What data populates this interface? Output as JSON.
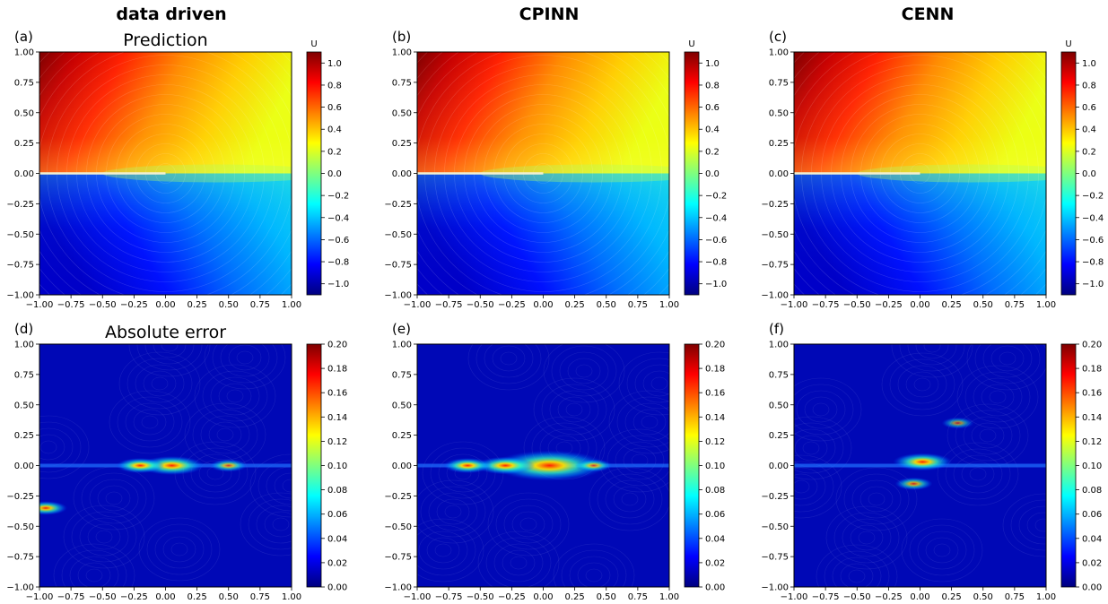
{
  "column_titles": [
    "data driven",
    "CPINN",
    "CENN"
  ],
  "row_titles": [
    "Prediction",
    "Absolute error"
  ],
  "panel_letters": [
    "(a)",
    "(b)",
    "(c)",
    "(d)",
    "(e)",
    "(f)"
  ],
  "colorbar_label_top": "U",
  "colors": {
    "colormap": "jet",
    "colormap_stops": [
      "#00007f",
      "#0000ff",
      "#007fff",
      "#00ffff",
      "#7fff7f",
      "#ffff00",
      "#ff7f00",
      "#ff0000",
      "#7f0000"
    ],
    "contour_line": "#ffffff"
  },
  "chart_data": [
    {
      "type": "heatmap",
      "panel": "(a)",
      "column": "data driven",
      "title": "Prediction",
      "field": "U",
      "xlim": [
        -1,
        1
      ],
      "ylim": [
        -1,
        1
      ],
      "x_ticks": [
        "−1.00",
        "−0.75",
        "−0.50",
        "−0.25",
        "0.00",
        "0.25",
        "0.50",
        "0.75",
        "1.00"
      ],
      "y_ticks": [
        "−1.00",
        "−0.75",
        "−0.50",
        "−0.25",
        "0.00",
        "0.25",
        "0.50",
        "0.75",
        "1.00"
      ],
      "colorbar": {
        "label": "U",
        "range": [
          -1.1,
          1.1
        ],
        "ticks": [
          "−1.0",
          "−0.8",
          "−0.6",
          "−0.4",
          "−0.2",
          "0.0",
          "0.2",
          "0.4",
          "0.6",
          "0.8",
          "1.0"
        ],
        "tick_values": [
          -1.0,
          -0.8,
          -0.6,
          -0.4,
          -0.2,
          0.0,
          0.2,
          0.4,
          0.6,
          0.8,
          1.0
        ]
      },
      "description_values": {
        "max": 1.05,
        "min": -1.05,
        "discontinuity": "y = 0 for x < 0"
      }
    },
    {
      "type": "heatmap",
      "panel": "(b)",
      "column": "CPINN",
      "title": "",
      "field": "U",
      "xlim": [
        -1,
        1
      ],
      "ylim": [
        -1,
        1
      ],
      "x_ticks": [
        "−1.00",
        "−0.75",
        "−0.50",
        "−0.25",
        "0.00",
        "0.25",
        "0.50",
        "0.75",
        "1.00"
      ],
      "y_ticks": [
        "−1.00",
        "−0.75",
        "−0.50",
        "−0.25",
        "0.00",
        "0.25",
        "0.50",
        "0.75",
        "1.00"
      ],
      "colorbar": {
        "label": "U",
        "range": [
          -1.1,
          1.1
        ],
        "ticks": [
          "−1.0",
          "−0.8",
          "−0.6",
          "−0.4",
          "−0.2",
          "0.0",
          "0.2",
          "0.4",
          "0.6",
          "0.8",
          "1.0"
        ],
        "tick_values": [
          -1.0,
          -0.8,
          -0.6,
          -0.4,
          -0.2,
          0.0,
          0.2,
          0.4,
          0.6,
          0.8,
          1.0
        ]
      }
    },
    {
      "type": "heatmap",
      "panel": "(c)",
      "column": "CENN",
      "title": "",
      "field": "U",
      "xlim": [
        -1,
        1
      ],
      "ylim": [
        -1,
        1
      ],
      "x_ticks": [
        "−1.00",
        "−0.75",
        "−0.50",
        "−0.25",
        "0.00",
        "0.25",
        "0.50",
        "0.75",
        "1.00"
      ],
      "y_ticks": [
        "−1.00",
        "−0.75",
        "−0.50",
        "−0.25",
        "0.00",
        "0.25",
        "0.50",
        "0.75",
        "1.00"
      ],
      "colorbar": {
        "label": "U",
        "range": [
          -1.1,
          1.1
        ],
        "ticks": [
          "−1.0",
          "−0.8",
          "−0.6",
          "−0.4",
          "−0.2",
          "0.0",
          "0.2",
          "0.4",
          "0.6",
          "0.8",
          "1.0"
        ],
        "tick_values": [
          -1.0,
          -0.8,
          -0.6,
          -0.4,
          -0.2,
          0.0,
          0.2,
          0.4,
          0.6,
          0.8,
          1.0
        ]
      }
    },
    {
      "type": "heatmap",
      "panel": "(d)",
      "column": "data driven",
      "title": "Absolute error",
      "field": "error",
      "xlim": [
        -1,
        1
      ],
      "ylim": [
        -1,
        1
      ],
      "x_ticks": [
        "−1.00",
        "−0.75",
        "−0.50",
        "−0.25",
        "0.00",
        "0.25",
        "0.50",
        "0.75",
        "1.00"
      ],
      "y_ticks": [
        "−1.00",
        "−0.75",
        "−0.50",
        "−0.25",
        "0.00",
        "0.25",
        "0.50",
        "0.75",
        "1.00"
      ],
      "colorbar": {
        "label": "",
        "range": [
          0,
          0.2
        ],
        "ticks": [
          "0.00",
          "0.02",
          "0.04",
          "0.06",
          "0.08",
          "0.10",
          "0.12",
          "0.14",
          "0.16",
          "0.18",
          "0.20"
        ],
        "tick_values": [
          0,
          0.02,
          0.04,
          0.06,
          0.08,
          0.1,
          0.12,
          0.14,
          0.16,
          0.18,
          0.2
        ]
      },
      "hotspots": [
        {
          "x": 0.05,
          "y": 0.0,
          "value": 0.08
        },
        {
          "x": -0.2,
          "y": 0.0,
          "value": 0.05
        },
        {
          "x": 0.5,
          "y": 0.0,
          "value": 0.03
        },
        {
          "x": -0.95,
          "y": -0.35,
          "value": 0.04
        }
      ]
    },
    {
      "type": "heatmap",
      "panel": "(e)",
      "column": "CPINN",
      "title": "",
      "field": "error",
      "xlim": [
        -1,
        1
      ],
      "ylim": [
        -1,
        1
      ],
      "x_ticks": [
        "−1.00",
        "−0.75",
        "−0.50",
        "−0.25",
        "0.00",
        "0.25",
        "0.50",
        "0.75",
        "1.00"
      ],
      "y_ticks": [
        "−1.00",
        "−0.75",
        "−0.50",
        "−0.25",
        "0.00",
        "0.25",
        "0.50",
        "0.75",
        "1.00"
      ],
      "colorbar": {
        "label": "",
        "range": [
          0,
          0.2
        ],
        "ticks": [
          "0.00",
          "0.02",
          "0.04",
          "0.06",
          "0.08",
          "0.10",
          "0.12",
          "0.14",
          "0.16",
          "0.18",
          "0.20"
        ],
        "tick_values": [
          0,
          0.02,
          0.04,
          0.06,
          0.08,
          0.1,
          0.12,
          0.14,
          0.16,
          0.18,
          0.2
        ]
      },
      "hotspots": [
        {
          "x": 0.05,
          "y": 0.0,
          "value": 0.17
        },
        {
          "x": -0.3,
          "y": 0.0,
          "value": 0.07
        },
        {
          "x": -0.6,
          "y": 0.0,
          "value": 0.05
        },
        {
          "x": 0.4,
          "y": 0.0,
          "value": 0.03
        }
      ]
    },
    {
      "type": "heatmap",
      "panel": "(f)",
      "column": "CENN",
      "title": "",
      "field": "error",
      "xlim": [
        -1,
        1
      ],
      "ylim": [
        -1,
        1
      ],
      "x_ticks": [
        "−1.00",
        "−0.75",
        "−0.50",
        "−0.25",
        "0.00",
        "0.25",
        "0.50",
        "0.75",
        "1.00"
      ],
      "y_ticks": [
        "−1.00",
        "−0.75",
        "−0.50",
        "−0.25",
        "0.00",
        "0.25",
        "0.50",
        "0.75",
        "1.00"
      ],
      "colorbar": {
        "label": "",
        "range": [
          0,
          0.2
        ],
        "ticks": [
          "0.00",
          "0.02",
          "0.04",
          "0.06",
          "0.08",
          "0.10",
          "0.12",
          "0.14",
          "0.16",
          "0.18",
          "0.20"
        ],
        "tick_values": [
          0,
          0.02,
          0.04,
          0.06,
          0.08,
          0.1,
          0.12,
          0.14,
          0.16,
          0.18,
          0.2
        ]
      },
      "hotspots": [
        {
          "x": 0.02,
          "y": 0.03,
          "value": 0.07
        },
        {
          "x": -0.05,
          "y": -0.15,
          "value": 0.03
        },
        {
          "x": 0.3,
          "y": 0.35,
          "value": 0.02
        }
      ]
    }
  ]
}
